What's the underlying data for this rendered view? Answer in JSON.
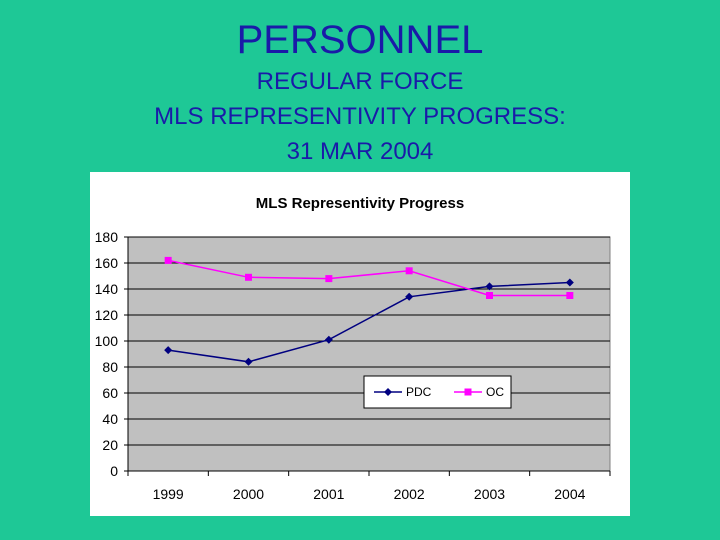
{
  "slide": {
    "title": "PERSONNEL",
    "subtitle_lines": [
      "REGULAR FORCE",
      "MLS REPRESENTIVITY PROGRESS:",
      "31 MAR 2004"
    ]
  },
  "chart_data": {
    "type": "line",
    "title": "MLS Representivity Progress",
    "xlabel": "",
    "ylabel": "",
    "categories": [
      "1999",
      "2000",
      "2001",
      "2002",
      "2003",
      "2004"
    ],
    "ylim": [
      0,
      180
    ],
    "yticks": [
      0,
      20,
      40,
      60,
      80,
      100,
      120,
      140,
      160,
      180
    ],
    "grid": true,
    "legend_position": "lower-center inside plot",
    "plot_background": "#c0c0c0",
    "series": [
      {
        "name": "PDC",
        "values": [
          93,
          84,
          101,
          134,
          142,
          145
        ],
        "color": "#000080",
        "marker": "diamond"
      },
      {
        "name": "OC",
        "values": [
          162,
          149,
          148,
          154,
          135,
          135
        ],
        "color": "#ff00ff",
        "marker": "square"
      }
    ]
  }
}
